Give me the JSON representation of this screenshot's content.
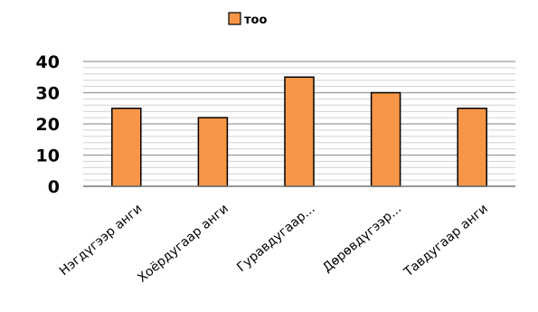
{
  "chart_data": {
    "type": "bar",
    "categories": [
      "Нэгдүгээр анги",
      "Хоёрдугаар анги",
      "Гуравдугаар...",
      "Дөрөвдүгээр...",
      "Тавдугаар анги"
    ],
    "series": [
      {
        "name": "тоо",
        "values": [
          25,
          22,
          35,
          30,
          25
        ]
      }
    ],
    "ylim": [
      0,
      40
    ],
    "yticks": [
      0,
      10,
      20,
      30,
      40
    ],
    "grid": true,
    "legend_position": "top",
    "colors": {
      "bar_fill": "#F79646",
      "bar_stroke": "#000000",
      "major_grid": "#999999",
      "minor_grid": "#D0D0D0"
    }
  }
}
